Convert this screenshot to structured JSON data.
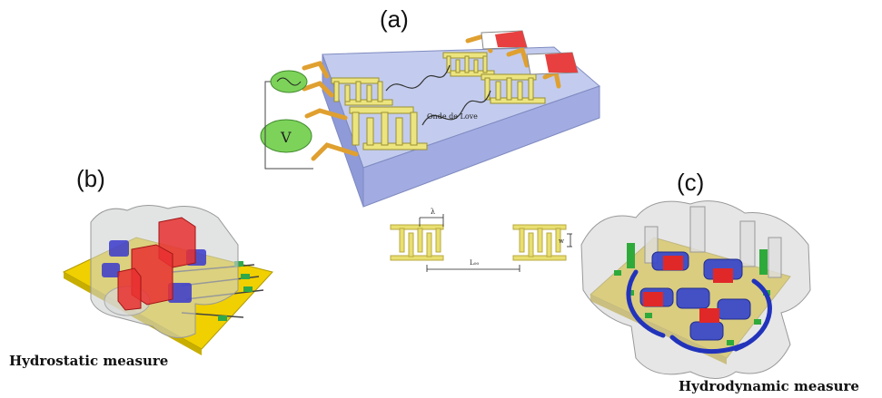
{
  "labels": {
    "a": "(a)",
    "b": "(b)",
    "c": "(c)"
  },
  "annotations": {
    "love_wave": "Onde de Love",
    "wavelength": "λ",
    "width_mark": "w",
    "distance": "L₀₀"
  },
  "captions": {
    "hydrostatic": "Hydrostatic measure",
    "hydrodynamic": "Hydrodynamic measure"
  },
  "colors": {
    "electrode": "#e8e07a",
    "substrate": "#9aa8e0",
    "pad_red": "#e84040",
    "source_green": "#7dd35a",
    "connector": "#e0a030",
    "fluid_blue": "#3a3acc",
    "pcb_yellow": "#f0d000"
  }
}
